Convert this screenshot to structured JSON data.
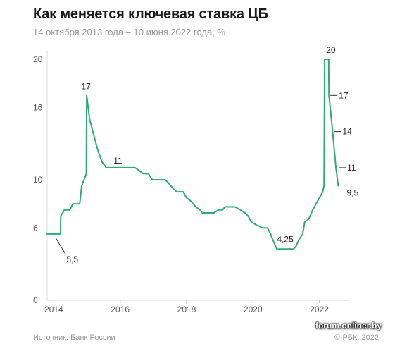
{
  "header": {
    "title": "Как меняется ключевая ставка ЦБ",
    "subtitle": "14 октября 2013 года – 10 июня 2022 года, %"
  },
  "footer": {
    "source": "Источник: Банк России",
    "copyright": "© РБК, 2022",
    "watermark": "forum.onliner.by"
  },
  "colors": {
    "line": "#2eaa72",
    "axis": "#dddddd",
    "text": "#555555"
  },
  "chart_data": {
    "type": "line",
    "title": "Как меняется ключевая ставка ЦБ",
    "subtitle": "14 октября 2013 года – 10 июня 2022 года, %",
    "xlim": [
      2013.8,
      2022.9
    ],
    "ylim": [
      0,
      21
    ],
    "yticks": [
      0,
      6,
      10,
      16,
      20
    ],
    "xticks": [
      2014,
      2016,
      2018,
      2020,
      2022
    ],
    "grid": false,
    "series": [
      {
        "points": [
          [
            2013.79,
            5.5
          ],
          [
            2014.2,
            5.5
          ],
          [
            2014.21,
            7.0
          ],
          [
            2014.32,
            7.5
          ],
          [
            2014.48,
            7.5
          ],
          [
            2014.58,
            8.0
          ],
          [
            2014.78,
            8.0
          ],
          [
            2014.84,
            9.5
          ],
          [
            2014.98,
            10.5
          ],
          [
            2014.99,
            17.0
          ],
          [
            2015.08,
            15.0
          ],
          [
            2015.32,
            12.5
          ],
          [
            2015.45,
            11.5
          ],
          [
            2015.58,
            11.0
          ],
          [
            2016.45,
            11.0
          ],
          [
            2016.7,
            10.5
          ],
          [
            2016.85,
            10.5
          ],
          [
            2016.97,
            10.0
          ],
          [
            2017.35,
            10.0
          ],
          [
            2017.45,
            9.75
          ],
          [
            2017.6,
            9.25
          ],
          [
            2017.7,
            9.0
          ],
          [
            2017.9,
            9.0
          ],
          [
            2018.0,
            8.5
          ],
          [
            2018.12,
            8.25
          ],
          [
            2018.28,
            7.75
          ],
          [
            2018.4,
            7.5
          ],
          [
            2018.48,
            7.25
          ],
          [
            2018.82,
            7.25
          ],
          [
            2018.96,
            7.5
          ],
          [
            2019.08,
            7.5
          ],
          [
            2019.16,
            7.75
          ],
          [
            2019.46,
            7.75
          ],
          [
            2019.62,
            7.5
          ],
          [
            2019.76,
            7.25
          ],
          [
            2019.85,
            7.0
          ],
          [
            2019.95,
            6.5
          ],
          [
            2020.1,
            6.25
          ],
          [
            2020.3,
            6.0
          ],
          [
            2020.44,
            6.0
          ],
          [
            2020.53,
            5.5
          ],
          [
            2020.6,
            5.0
          ],
          [
            2020.68,
            4.5
          ],
          [
            2020.72,
            4.25
          ],
          [
            2021.22,
            4.25
          ],
          [
            2021.3,
            4.5
          ],
          [
            2021.38,
            5.0
          ],
          [
            2021.5,
            5.5
          ],
          [
            2021.56,
            6.5
          ],
          [
            2021.68,
            6.75
          ],
          [
            2021.8,
            7.5
          ],
          [
            2021.9,
            8.0
          ],
          [
            2022.0,
            8.5
          ],
          [
            2022.1,
            9.0
          ],
          [
            2022.14,
            9.5
          ],
          [
            2022.16,
            20.0
          ],
          [
            2022.28,
            20.0
          ],
          [
            2022.29,
            17.0
          ],
          [
            2022.4,
            14.0
          ],
          [
            2022.5,
            11.0
          ],
          [
            2022.57,
            9.5
          ]
        ]
      }
    ],
    "annotations": [
      {
        "text": "5,5",
        "x": 2014.0,
        "y": 5.5
      },
      {
        "text": "17",
        "x": 2014.99,
        "y": 17.0
      },
      {
        "text": "11",
        "x": 2016.1,
        "y": 11.0
      },
      {
        "text": "4,25",
        "x": 2020.95,
        "y": 4.25
      },
      {
        "text": "20",
        "x": 2022.22,
        "y": 20.0
      },
      {
        "text": "17",
        "x": 2022.29,
        "y": 17.0
      },
      {
        "text": "14",
        "x": 2022.4,
        "y": 14.0
      },
      {
        "text": "11",
        "x": 2022.5,
        "y": 11.0
      },
      {
        "text": "9,5",
        "x": 2022.57,
        "y": 9.5
      }
    ]
  }
}
